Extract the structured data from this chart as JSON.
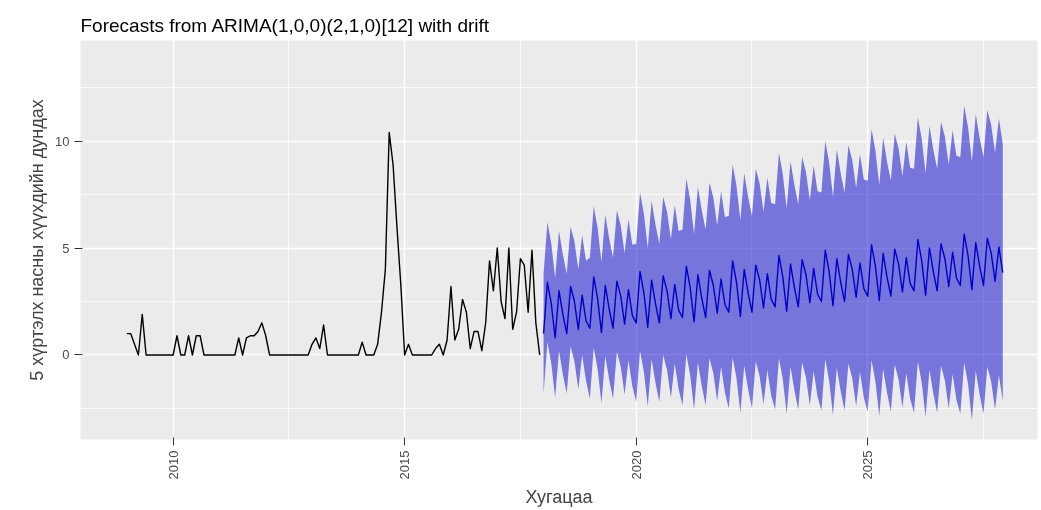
{
  "chart_data": {
    "type": "line",
    "title": "Forecasts from ARIMA(1,0,0)(2,1,0)[12] with drift",
    "xlabel": "Хугацаа",
    "ylabel": "5 хүртэлх насны хүүхдийн дундах",
    "xlim": [
      "2008-01",
      "2028-09"
    ],
    "xticks": [
      "2010",
      "2015",
      "2020",
      "2025"
    ],
    "ylim": [
      -3.95,
      14.7
    ],
    "yticks": [
      0,
      5,
      10
    ],
    "grid": true,
    "series": [
      {
        "color": "#000000",
        "x": [
          "2009-01",
          "2009-02",
          "2009-03",
          "2009-04",
          "2009-05",
          "2009-06",
          "2009-07",
          "2009-08",
          "2009-09",
          "2009-10",
          "2009-11",
          "2009-12",
          "2010-01",
          "2010-02",
          "2010-03",
          "2010-04",
          "2010-05",
          "2010-06",
          "2010-07",
          "2010-08",
          "2010-09",
          "2010-10",
          "2010-11",
          "2010-12",
          "2011-01",
          "2011-02",
          "2011-03",
          "2011-04",
          "2011-05",
          "2011-06",
          "2011-07",
          "2011-08",
          "2011-09",
          "2011-10",
          "2011-11",
          "2011-12",
          "2012-01",
          "2012-02",
          "2012-03",
          "2012-04",
          "2012-05",
          "2012-06",
          "2012-07",
          "2012-08",
          "2012-09",
          "2012-10",
          "2012-11",
          "2012-12",
          "2013-01",
          "2013-02",
          "2013-03",
          "2013-04",
          "2013-05",
          "2013-06",
          "2013-07",
          "2013-08",
          "2013-09",
          "2013-10",
          "2013-11",
          "2013-12",
          "2014-01",
          "2014-02",
          "2014-03",
          "2014-04",
          "2014-05",
          "2014-06",
          "2014-07",
          "2014-08",
          "2014-09",
          "2014-10",
          "2014-11",
          "2014-12",
          "2015-01",
          "2015-02",
          "2015-03",
          "2015-04",
          "2015-05",
          "2015-06",
          "2015-07",
          "2015-08",
          "2015-09",
          "2015-10",
          "2015-11",
          "2015-12",
          "2016-01",
          "2016-02",
          "2016-03",
          "2016-04",
          "2016-05",
          "2016-06",
          "2016-07",
          "2016-08",
          "2016-09",
          "2016-10",
          "2016-11",
          "2016-12",
          "2017-01",
          "2017-02",
          "2017-03",
          "2017-04",
          "2017-05",
          "2017-06",
          "2017-07",
          "2017-08",
          "2017-09",
          "2017-10",
          "2017-11",
          "2017-12"
        ],
        "values": [
          1.0,
          1.0,
          0.5,
          0,
          1.9,
          0,
          0,
          0,
          0,
          0,
          0,
          0,
          0,
          0.9,
          0,
          0,
          0.9,
          0,
          0.9,
          0.9,
          0,
          0,
          0,
          0,
          0,
          0,
          0,
          0,
          0,
          0.8,
          0,
          0.8,
          0.9,
          0.9,
          1.1,
          1.5,
          0.9,
          0,
          0,
          0,
          0,
          0,
          0,
          0,
          0,
          0,
          0,
          0,
          0.5,
          0.8,
          0.3,
          1.4,
          0,
          0,
          0,
          0,
          0,
          0,
          0,
          0,
          0,
          0.6,
          0,
          0,
          0,
          0.5,
          2.0,
          4.0,
          10.4,
          8.9,
          6.0,
          3.3,
          0,
          0.5,
          0,
          0,
          0,
          0,
          0,
          0,
          0.3,
          0.5,
          0,
          0.7,
          3.2,
          0.7,
          1.2,
          2.6,
          2.0,
          0.3,
          1.1,
          1.1,
          0.2,
          1.5,
          4.4,
          3.0,
          5.0,
          2.5,
          1.7,
          5.0,
          1.2,
          2.0,
          4.5,
          4.2,
          2.0,
          4.9,
          1.5,
          0.0
        ]
      },
      {
        "color": "#0000cc",
        "x": [
          "2018-01",
          "2018-02",
          "2018-03",
          "2018-04",
          "2018-05",
          "2018-06",
          "2018-07",
          "2018-08",
          "2018-09",
          "2018-10",
          "2018-11",
          "2018-12",
          "2019-01",
          "2019-02",
          "2019-03",
          "2019-04",
          "2019-05",
          "2019-06",
          "2019-07",
          "2019-08",
          "2019-09",
          "2019-10",
          "2019-11",
          "2019-12",
          "2020-01",
          "2020-02",
          "2020-03",
          "2020-04",
          "2020-05",
          "2020-06",
          "2020-07",
          "2020-08",
          "2020-09",
          "2020-10",
          "2020-11",
          "2020-12",
          "2021-01",
          "2021-02",
          "2021-03",
          "2021-04",
          "2021-05",
          "2021-06",
          "2021-07",
          "2021-08",
          "2021-09",
          "2021-10",
          "2021-11",
          "2021-12",
          "2022-01",
          "2022-02",
          "2022-03",
          "2022-04",
          "2022-05",
          "2022-06",
          "2022-07",
          "2022-08",
          "2022-09",
          "2022-10",
          "2022-11",
          "2022-12",
          "2023-01",
          "2023-02",
          "2023-03",
          "2023-04",
          "2023-05",
          "2023-06",
          "2023-07",
          "2023-08",
          "2023-09",
          "2023-10",
          "2023-11",
          "2023-12",
          "2024-01",
          "2024-02",
          "2024-03",
          "2024-04",
          "2024-05",
          "2024-06",
          "2024-07",
          "2024-08",
          "2024-09",
          "2024-10",
          "2024-11",
          "2024-12",
          "2025-01",
          "2025-02",
          "2025-03",
          "2025-04",
          "2025-05",
          "2025-06",
          "2025-07",
          "2025-08",
          "2025-09",
          "2025-10",
          "2025-11",
          "2025-12",
          "2026-01",
          "2026-02",
          "2026-03",
          "2026-04",
          "2026-05",
          "2026-06",
          "2026-07",
          "2026-08",
          "2026-09",
          "2026-10",
          "2026-11",
          "2026-12",
          "2027-01",
          "2027-02",
          "2027-03",
          "2027-04",
          "2027-05",
          "2027-06",
          "2027-07",
          "2027-08",
          "2027-09",
          "2027-10",
          "2027-11",
          "2027-12"
        ],
        "values": [
          1.0,
          3.4,
          2.4,
          0.8,
          3.0,
          1.9,
          1.0,
          3.2,
          2.5,
          1.2,
          2.8,
          1.6,
          1.25,
          3.65,
          2.65,
          1.05,
          3.25,
          2.15,
          1.25,
          3.45,
          2.75,
          1.45,
          3.05,
          1.85,
          1.5,
          3.9,
          2.9,
          1.3,
          3.5,
          2.4,
          1.5,
          3.7,
          3.0,
          1.7,
          3.3,
          2.1,
          1.75,
          4.15,
          3.15,
          1.55,
          3.75,
          2.65,
          1.75,
          3.95,
          3.25,
          1.95,
          3.55,
          2.35,
          2.0,
          4.4,
          3.4,
          1.8,
          4.0,
          2.9,
          2.0,
          4.2,
          3.5,
          2.2,
          3.8,
          2.6,
          2.25,
          4.65,
          3.65,
          2.05,
          4.25,
          3.15,
          2.25,
          4.45,
          3.75,
          2.45,
          4.05,
          2.85,
          2.5,
          4.9,
          3.9,
          2.3,
          4.5,
          3.4,
          2.5,
          4.7,
          4.0,
          2.7,
          4.3,
          3.1,
          2.75,
          5.15,
          4.15,
          2.55,
          4.75,
          3.65,
          2.75,
          4.95,
          4.25,
          2.95,
          4.55,
          3.35,
          3.0,
          5.4,
          4.4,
          2.8,
          5.0,
          3.9,
          3.0,
          5.2,
          4.5,
          3.2,
          4.8,
          3.6,
          3.25,
          5.65,
          4.65,
          3.05,
          5.25,
          4.15,
          3.25,
          5.45,
          4.75,
          3.45,
          5.05,
          3.85
        ],
        "upper": [
          3.8,
          6.2,
          5.2,
          3.6,
          5.8,
          4.7,
          3.8,
          6.0,
          5.3,
          4.0,
          5.6,
          4.4,
          4.55,
          6.95,
          5.95,
          4.35,
          6.55,
          5.45,
          4.55,
          6.75,
          6.05,
          4.75,
          6.35,
          5.15,
          5.2,
          7.6,
          6.6,
          5.0,
          7.2,
          6.1,
          5.2,
          7.4,
          6.7,
          5.4,
          7.0,
          5.8,
          5.85,
          8.25,
          7.25,
          5.65,
          7.85,
          6.75,
          5.85,
          8.05,
          7.35,
          6.05,
          7.65,
          6.45,
          6.5,
          8.9,
          7.9,
          6.3,
          8.5,
          7.4,
          6.5,
          8.7,
          8.0,
          6.7,
          8.3,
          7.1,
          7.05,
          9.45,
          8.45,
          6.85,
          9.05,
          7.95,
          7.05,
          9.25,
          8.55,
          7.25,
          8.85,
          7.65,
          7.6,
          10.0,
          9.0,
          7.4,
          9.6,
          8.5,
          7.6,
          9.8,
          9.1,
          7.8,
          9.4,
          8.2,
          8.15,
          10.55,
          9.55,
          7.95,
          10.15,
          9.05,
          8.15,
          10.35,
          9.65,
          8.35,
          9.95,
          8.75,
          8.7,
          11.1,
          10.1,
          8.5,
          10.7,
          9.6,
          8.7,
          10.9,
          10.2,
          8.9,
          10.5,
          9.3,
          9.25,
          11.65,
          10.65,
          9.05,
          11.25,
          10.15,
          9.25,
          11.45,
          10.75,
          9.45,
          11.05,
          9.85
        ],
        "lower": [
          -1.8,
          0.6,
          -0.4,
          -2.0,
          0.2,
          -0.9,
          -1.8,
          0.4,
          -0.3,
          -1.6,
          0.0,
          -1.2,
          -2.05,
          0.35,
          -0.65,
          -2.25,
          -0.05,
          -1.15,
          -2.05,
          0.15,
          -0.55,
          -1.85,
          -0.25,
          -1.45,
          -2.2,
          0.2,
          -0.8,
          -2.4,
          -0.2,
          -1.3,
          -2.2,
          0.0,
          -0.7,
          -2.0,
          -0.4,
          -1.6,
          -2.35,
          0.05,
          -0.95,
          -2.55,
          -0.35,
          -1.45,
          -2.35,
          -0.15,
          -0.85,
          -2.15,
          -0.55,
          -1.75,
          -2.5,
          -0.1,
          -1.1,
          -2.7,
          -0.5,
          -1.6,
          -2.5,
          -0.3,
          -1.0,
          -2.3,
          -0.7,
          -1.9,
          -2.55,
          -0.15,
          -1.15,
          -2.75,
          -0.55,
          -1.65,
          -2.55,
          -0.35,
          -1.05,
          -2.35,
          -0.75,
          -1.95,
          -2.6,
          -0.2,
          -1.2,
          -2.8,
          -0.6,
          -1.7,
          -2.6,
          -0.4,
          -1.1,
          -2.4,
          -0.8,
          -2.0,
          -2.65,
          -0.25,
          -1.25,
          -2.85,
          -0.65,
          -1.75,
          -2.65,
          -0.45,
          -1.15,
          -2.45,
          -0.85,
          -2.05,
          -2.7,
          -0.3,
          -1.3,
          -2.9,
          -0.7,
          -1.8,
          -2.7,
          -0.5,
          -1.2,
          -2.5,
          -0.9,
          -2.1,
          -2.75,
          -0.35,
          -1.35,
          -3.05,
          -0.75,
          -1.85,
          -2.75,
          -0.55,
          -1.25,
          -2.55,
          -0.95,
          -2.15
        ]
      }
    ]
  }
}
